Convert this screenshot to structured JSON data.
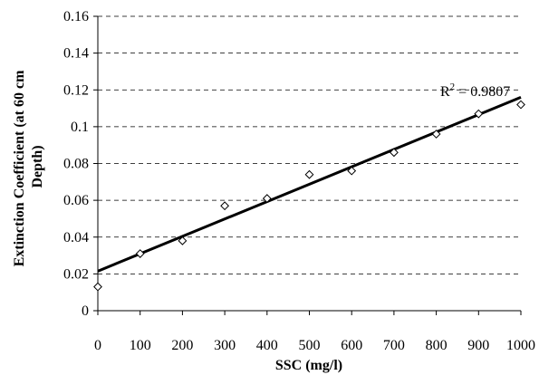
{
  "chart_data": {
    "type": "scatter",
    "xlabel": "SSC (mg/l)",
    "ylabel_lines": [
      "Extinction Coefficient (at 60 cm",
      "Depth)"
    ],
    "xlim": [
      0,
      1000
    ],
    "ylim": [
      0,
      0.16
    ],
    "x_ticks": [
      0,
      100,
      200,
      300,
      400,
      500,
      600,
      700,
      800,
      900,
      1000
    ],
    "y_ticks": [
      0,
      0.02,
      0.04,
      0.06,
      0.08,
      0.1,
      0.12,
      0.14,
      0.16
    ],
    "x_tick_labels": [
      "0",
      "100",
      "200",
      "300",
      "400",
      "500",
      "600",
      "700",
      "800",
      "900",
      "1000"
    ],
    "y_tick_labels": [
      "0",
      "0.02",
      "0.04",
      "0.06",
      "0.08",
      "0.1",
      "0.12",
      "0.14",
      "0.16"
    ],
    "grid": {
      "horizontal": true,
      "vertical": false,
      "style": "dashed"
    },
    "marker": "diamond-open",
    "points": [
      {
        "x": 0,
        "y": 0.013
      },
      {
        "x": 100,
        "y": 0.031
      },
      {
        "x": 200,
        "y": 0.038
      },
      {
        "x": 300,
        "y": 0.057
      },
      {
        "x": 400,
        "y": 0.061
      },
      {
        "x": 500,
        "y": 0.074
      },
      {
        "x": 600,
        "y": 0.076
      },
      {
        "x": 700,
        "y": 0.086
      },
      {
        "x": 800,
        "y": 0.096
      },
      {
        "x": 900,
        "y": 0.107
      },
      {
        "x": 1000,
        "y": 0.112
      }
    ],
    "trendline": {
      "type": "linear",
      "x": [
        0,
        1000
      ],
      "y": [
        0.0215,
        0.116
      ]
    },
    "annotation": {
      "base": "R",
      "sup": "2",
      "rest": " = 0.9807"
    }
  }
}
